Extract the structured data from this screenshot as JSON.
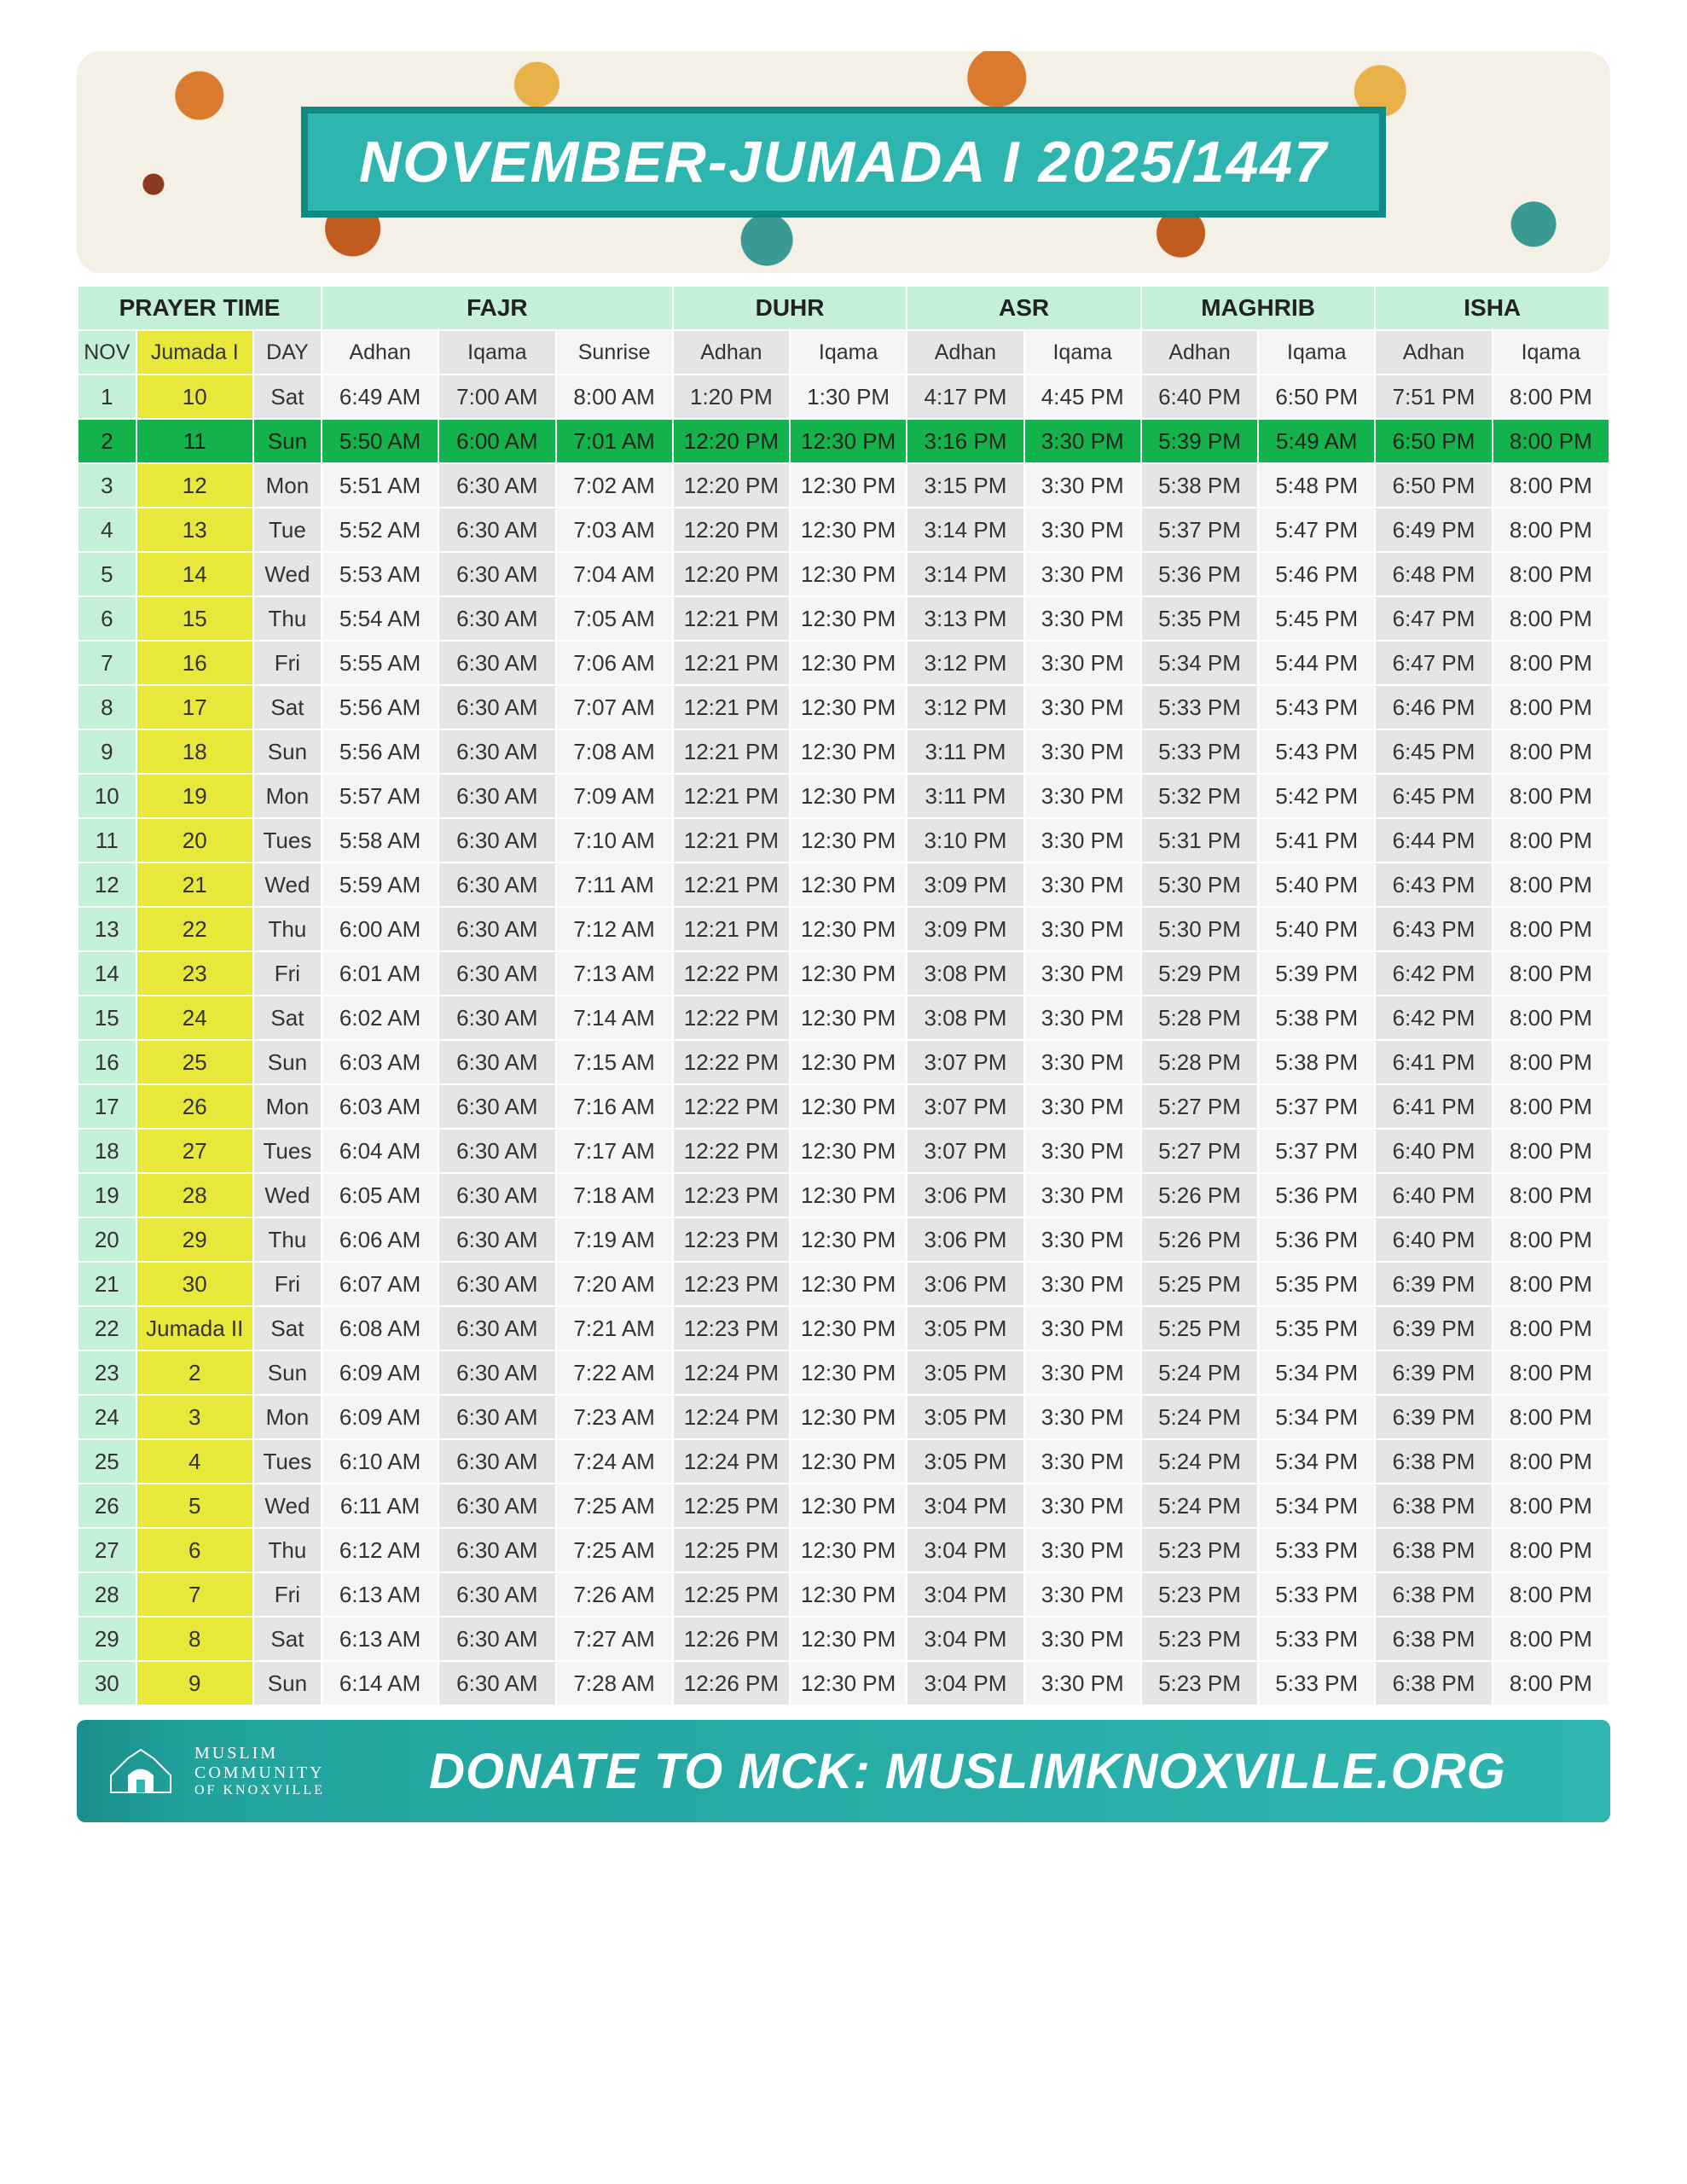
{
  "banner": {
    "title": "NOVEMBER-JUMADA I 2025/1447",
    "title_bg": "#2fb5b0",
    "title_border": "#0d8a85",
    "title_color": "#ffffff"
  },
  "table": {
    "group_headers": {
      "prayer_time": "PRAYER TIME",
      "fajr": "FAJR",
      "duhr": "DUHR",
      "asr": "ASR",
      "maghrib": "MAGHRIB",
      "isha": "ISHA"
    },
    "sub_headers": {
      "nov": "NOV",
      "hijri": "Jumada I",
      "day": "DAY",
      "adhan": "Adhan",
      "iqama": "Iqama",
      "sunrise": "Sunrise"
    },
    "colors": {
      "header_bg": "#c5f0d8",
      "nov_bg": "#c5f0d8",
      "hijri_bg": "#e8e83a",
      "day_bg": "#e5e5e5",
      "cell_light": "#f5f5f5",
      "cell_dark": "#e5e5e5",
      "today_bg": "#14b24a",
      "border": "#ffffff",
      "text": "#333333"
    },
    "highlight_row_nov": 2,
    "rows": [
      {
        "nov": "1",
        "hijri": "10",
        "day": "Sat",
        "t": [
          "6:49 AM",
          "7:00 AM",
          "8:00 AM",
          "1:20 PM",
          "1:30 PM",
          "4:17 PM",
          "4:45 PM",
          "6:40 PM",
          "6:50 PM",
          "7:51 PM",
          "8:00 PM"
        ]
      },
      {
        "nov": "2",
        "hijri": "11",
        "day": "Sun",
        "t": [
          "5:50 AM",
          "6:00 AM",
          "7:01 AM",
          "12:20 PM",
          "12:30 PM",
          "3:16 PM",
          "3:30 PM",
          "5:39 PM",
          "5:49 AM",
          "6:50 PM",
          "8:00 PM"
        ]
      },
      {
        "nov": "3",
        "hijri": "12",
        "day": "Mon",
        "t": [
          "5:51 AM",
          "6:30 AM",
          "7:02 AM",
          "12:20 PM",
          "12:30 PM",
          "3:15 PM",
          "3:30 PM",
          "5:38 PM",
          "5:48 PM",
          "6:50 PM",
          "8:00 PM"
        ]
      },
      {
        "nov": "4",
        "hijri": "13",
        "day": "Tue",
        "t": [
          "5:52 AM",
          "6:30 AM",
          "7:03 AM",
          "12:20 PM",
          "12:30 PM",
          "3:14 PM",
          "3:30 PM",
          "5:37 PM",
          "5:47 PM",
          "6:49 PM",
          "8:00 PM"
        ]
      },
      {
        "nov": "5",
        "hijri": "14",
        "day": "Wed",
        "t": [
          "5:53 AM",
          "6:30 AM",
          "7:04 AM",
          "12:20 PM",
          "12:30 PM",
          "3:14 PM",
          "3:30 PM",
          "5:36 PM",
          "5:46 PM",
          "6:48 PM",
          "8:00 PM"
        ]
      },
      {
        "nov": "6",
        "hijri": "15",
        "day": "Thu",
        "t": [
          "5:54 AM",
          "6:30 AM",
          "7:05 AM",
          "12:21 PM",
          "12:30 PM",
          "3:13 PM",
          "3:30 PM",
          "5:35 PM",
          "5:45 PM",
          "6:47 PM",
          "8:00 PM"
        ]
      },
      {
        "nov": "7",
        "hijri": "16",
        "day": "Fri",
        "t": [
          "5:55 AM",
          "6:30 AM",
          "7:06 AM",
          "12:21 PM",
          "12:30 PM",
          "3:12 PM",
          "3:30 PM",
          "5:34 PM",
          "5:44 PM",
          "6:47 PM",
          "8:00 PM"
        ]
      },
      {
        "nov": "8",
        "hijri": "17",
        "day": "Sat",
        "t": [
          "5:56 AM",
          "6:30 AM",
          "7:07 AM",
          "12:21 PM",
          "12:30 PM",
          "3:12 PM",
          "3:30 PM",
          "5:33 PM",
          "5:43 PM",
          "6:46 PM",
          "8:00 PM"
        ]
      },
      {
        "nov": "9",
        "hijri": "18",
        "day": "Sun",
        "t": [
          "5:56 AM",
          "6:30 AM",
          "7:08 AM",
          "12:21 PM",
          "12:30 PM",
          "3:11 PM",
          "3:30 PM",
          "5:33 PM",
          "5:43 PM",
          "6:45 PM",
          "8:00 PM"
        ]
      },
      {
        "nov": "10",
        "hijri": "19",
        "day": "Mon",
        "t": [
          "5:57 AM",
          "6:30 AM",
          "7:09 AM",
          "12:21 PM",
          "12:30 PM",
          "3:11 PM",
          "3:30 PM",
          "5:32 PM",
          "5:42 PM",
          "6:45 PM",
          "8:00 PM"
        ]
      },
      {
        "nov": "11",
        "hijri": "20",
        "day": "Tues",
        "t": [
          "5:58 AM",
          "6:30 AM",
          "7:10 AM",
          "12:21 PM",
          "12:30 PM",
          "3:10 PM",
          "3:30 PM",
          "5:31 PM",
          "5:41 PM",
          "6:44 PM",
          "8:00 PM"
        ]
      },
      {
        "nov": "12",
        "hijri": "21",
        "day": "Wed",
        "t": [
          "5:59 AM",
          "6:30 AM",
          "7:11 AM",
          "12:21 PM",
          "12:30 PM",
          "3:09 PM",
          "3:30 PM",
          "5:30 PM",
          "5:40 PM",
          "6:43 PM",
          "8:00 PM"
        ]
      },
      {
        "nov": "13",
        "hijri": "22",
        "day": "Thu",
        "t": [
          "6:00 AM",
          "6:30 AM",
          "7:12 AM",
          "12:21 PM",
          "12:30 PM",
          "3:09 PM",
          "3:30 PM",
          "5:30 PM",
          "5:40 PM",
          "6:43 PM",
          "8:00 PM"
        ]
      },
      {
        "nov": "14",
        "hijri": "23",
        "day": "Fri",
        "t": [
          "6:01 AM",
          "6:30 AM",
          "7:13 AM",
          "12:22 PM",
          "12:30 PM",
          "3:08 PM",
          "3:30 PM",
          "5:29 PM",
          "5:39 PM",
          "6:42 PM",
          "8:00 PM"
        ]
      },
      {
        "nov": "15",
        "hijri": "24",
        "day": "Sat",
        "t": [
          "6:02 AM",
          "6:30 AM",
          "7:14 AM",
          "12:22 PM",
          "12:30 PM",
          "3:08 PM",
          "3:30 PM",
          "5:28 PM",
          "5:38 PM",
          "6:42 PM",
          "8:00 PM"
        ]
      },
      {
        "nov": "16",
        "hijri": "25",
        "day": "Sun",
        "t": [
          "6:03 AM",
          "6:30 AM",
          "7:15 AM",
          "12:22 PM",
          "12:30 PM",
          "3:07 PM",
          "3:30 PM",
          "5:28 PM",
          "5:38 PM",
          "6:41 PM",
          "8:00 PM"
        ]
      },
      {
        "nov": "17",
        "hijri": "26",
        "day": "Mon",
        "t": [
          "6:03 AM",
          "6:30 AM",
          "7:16 AM",
          "12:22 PM",
          "12:30 PM",
          "3:07 PM",
          "3:30 PM",
          "5:27 PM",
          "5:37 PM",
          "6:41 PM",
          "8:00 PM"
        ]
      },
      {
        "nov": "18",
        "hijri": "27",
        "day": "Tues",
        "t": [
          "6:04 AM",
          "6:30 AM",
          "7:17 AM",
          "12:22 PM",
          "12:30 PM",
          "3:07 PM",
          "3:30 PM",
          "5:27 PM",
          "5:37 PM",
          "6:40 PM",
          "8:00 PM"
        ]
      },
      {
        "nov": "19",
        "hijri": "28",
        "day": "Wed",
        "t": [
          "6:05 AM",
          "6:30 AM",
          "7:18 AM",
          "12:23 PM",
          "12:30 PM",
          "3:06 PM",
          "3:30 PM",
          "5:26 PM",
          "5:36 PM",
          "6:40 PM",
          "8:00 PM"
        ]
      },
      {
        "nov": "20",
        "hijri": "29",
        "day": "Thu",
        "t": [
          "6:06 AM",
          "6:30 AM",
          "7:19 AM",
          "12:23 PM",
          "12:30 PM",
          "3:06 PM",
          "3:30 PM",
          "5:26 PM",
          "5:36 PM",
          "6:40 PM",
          "8:00 PM"
        ]
      },
      {
        "nov": "21",
        "hijri": "30",
        "day": "Fri",
        "t": [
          "6:07 AM",
          "6:30 AM",
          "7:20 AM",
          "12:23 PM",
          "12:30 PM",
          "3:06 PM",
          "3:30 PM",
          "5:25 PM",
          "5:35 PM",
          "6:39 PM",
          "8:00 PM"
        ]
      },
      {
        "nov": "22",
        "hijri": "Jumada II",
        "day": "Sat",
        "t": [
          "6:08 AM",
          "6:30 AM",
          "7:21 AM",
          "12:23 PM",
          "12:30 PM",
          "3:05 PM",
          "3:30 PM",
          "5:25 PM",
          "5:35 PM",
          "6:39 PM",
          "8:00 PM"
        ]
      },
      {
        "nov": "23",
        "hijri": "2",
        "day": "Sun",
        "t": [
          "6:09 AM",
          "6:30 AM",
          "7:22 AM",
          "12:24 PM",
          "12:30 PM",
          "3:05 PM",
          "3:30 PM",
          "5:24 PM",
          "5:34 PM",
          "6:39 PM",
          "8:00 PM"
        ]
      },
      {
        "nov": "24",
        "hijri": "3",
        "day": "Mon",
        "t": [
          "6:09 AM",
          "6:30 AM",
          "7:23 AM",
          "12:24 PM",
          "12:30 PM",
          "3:05 PM",
          "3:30 PM",
          "5:24 PM",
          "5:34 PM",
          "6:39 PM",
          "8:00 PM"
        ]
      },
      {
        "nov": "25",
        "hijri": "4",
        "day": "Tues",
        "t": [
          "6:10 AM",
          "6:30 AM",
          "7:24 AM",
          "12:24 PM",
          "12:30 PM",
          "3:05 PM",
          "3:30 PM",
          "5:24 PM",
          "5:34 PM",
          "6:38 PM",
          "8:00 PM"
        ]
      },
      {
        "nov": "26",
        "hijri": "5",
        "day": "Wed",
        "t": [
          "6:11 AM",
          "6:30 AM",
          "7:25 AM",
          "12:25 PM",
          "12:30 PM",
          "3:04 PM",
          "3:30 PM",
          "5:24 PM",
          "5:34 PM",
          "6:38 PM",
          "8:00 PM"
        ]
      },
      {
        "nov": "27",
        "hijri": "6",
        "day": "Thu",
        "t": [
          "6:12 AM",
          "6:30 AM",
          "7:25 AM",
          "12:25 PM",
          "12:30 PM",
          "3:04 PM",
          "3:30 PM",
          "5:23 PM",
          "5:33 PM",
          "6:38 PM",
          "8:00 PM"
        ]
      },
      {
        "nov": "28",
        "hijri": "7",
        "day": "Fri",
        "t": [
          "6:13 AM",
          "6:30 AM",
          "7:26 AM",
          "12:25 PM",
          "12:30 PM",
          "3:04 PM",
          "3:30 PM",
          "5:23 PM",
          "5:33 PM",
          "6:38 PM",
          "8:00 PM"
        ]
      },
      {
        "nov": "29",
        "hijri": "8",
        "day": "Sat",
        "t": [
          "6:13 AM",
          "6:30 AM",
          "7:27 AM",
          "12:26 PM",
          "12:30 PM",
          "3:04 PM",
          "3:30 PM",
          "5:23 PM",
          "5:33 PM",
          "6:38 PM",
          "8:00 PM"
        ]
      },
      {
        "nov": "30",
        "hijri": "9",
        "day": "Sun",
        "t": [
          "6:14 AM",
          "6:30 AM",
          "7:28 AM",
          "12:26 PM",
          "12:30 PM",
          "3:04 PM",
          "3:30 PM",
          "5:23 PM",
          "5:33 PM",
          "6:38 PM",
          "8:00 PM"
        ]
      }
    ]
  },
  "footer": {
    "org_line1": "MUSLIM",
    "org_line2": "COMMUNITY",
    "org_line3": "OF KNOXVILLE",
    "donate": "DONATE TO MCK: MUSLIMKNOXVILLE.ORG",
    "bg": "#2fb5b0",
    "text_color": "#ffffff"
  }
}
